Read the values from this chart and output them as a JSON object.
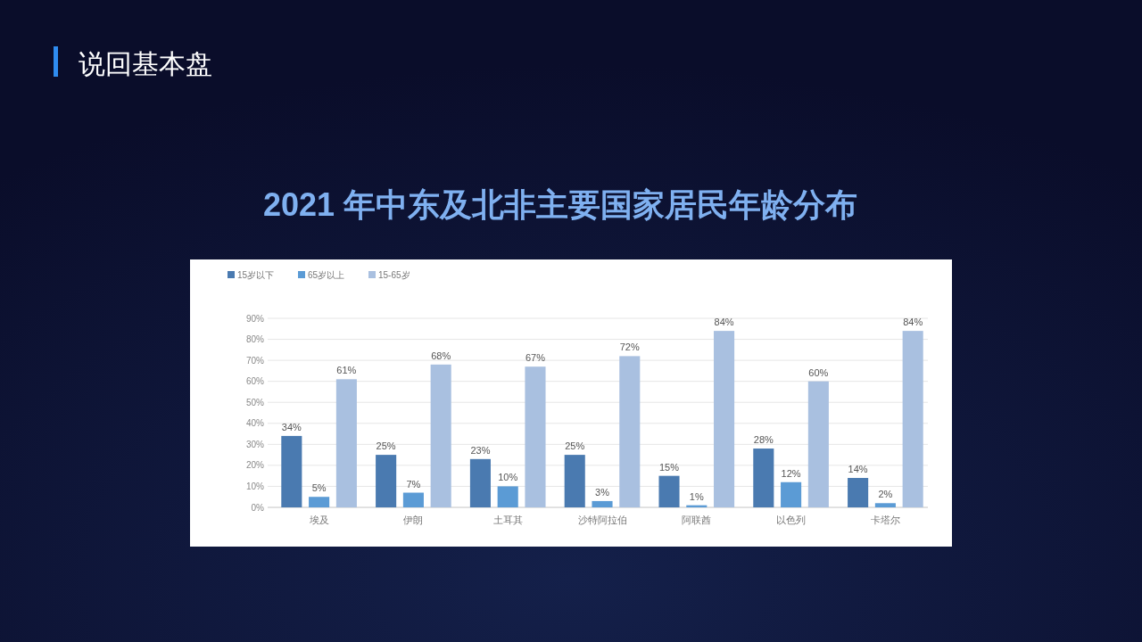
{
  "chart_data": {
    "type": "bar",
    "title": "2021 年中东及北非主要国家居民年龄分布",
    "annotations": [
      "说回基本盘"
    ],
    "categories": [
      "埃及",
      "伊朗",
      "土耳其",
      "沙特阿拉伯",
      "阿联酋",
      "以色列",
      "卡塔尔"
    ],
    "series": [
      {
        "name": "15岁以下",
        "color": "#4a7ab0",
        "values": [
          34,
          25,
          23,
          25,
          15,
          28,
          14
        ],
        "value_labels": [
          "34%",
          "25%",
          "23%",
          "25%",
          "15%",
          "28%",
          "14%"
        ]
      },
      {
        "name": "65岁以上",
        "color": "#5b9bd5",
        "values": [
          5,
          7,
          10,
          3,
          1,
          12,
          2
        ],
        "value_labels": [
          "5%",
          "7%",
          "10%",
          "3%",
          "1%",
          "12%",
          "2%"
        ]
      },
      {
        "name": "15-65岁",
        "color": "#a9c0e0",
        "values": [
          61,
          68,
          67,
          72,
          84,
          60,
          84
        ],
        "value_labels": [
          "61%",
          "68%",
          "67%",
          "72%",
          "84%",
          "60%",
          "84%"
        ]
      }
    ],
    "ylim": [
      0,
      90
    ],
    "yticks": [
      {
        "value": 0,
        "label": "0%"
      },
      {
        "value": 10,
        "label": "10%"
      },
      {
        "value": 20,
        "label": "20%"
      },
      {
        "value": 30,
        "label": "30%"
      },
      {
        "value": 40,
        "label": "40%"
      },
      {
        "value": 50,
        "label": "50%"
      },
      {
        "value": 60,
        "label": "60%"
      },
      {
        "value": 70,
        "label": "70%"
      },
      {
        "value": 80,
        "label": "80%"
      },
      {
        "value": 90,
        "label": "90%"
      }
    ],
    "grid": "y",
    "legend": "top left"
  }
}
